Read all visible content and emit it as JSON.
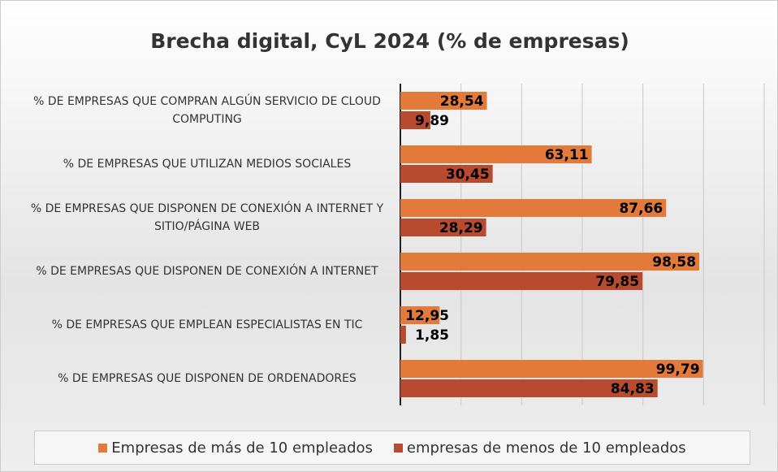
{
  "chart_data": {
    "type": "hbar",
    "title": "Brecha digital, CyL 2024 (% de empresas)",
    "categories": [
      "% DE EMPRESAS QUE COMPRAN ALGÚN SERVICIO DE CLOUD COMPUTING",
      "% DE EMPRESAS QUE UTILIZAN MEDIOS SOCIALES",
      "% DE EMPRESAS QUE DISPONEN DE CONEXIÓN A INTERNET Y SITIO/PÁGINA WEB",
      "% DE EMPRESAS QUE DISPONEN DE CONEXIÓN A INTERNET",
      "% DE EMPRESAS QUE EMPLEAN ESPECIALISTAS EN TIC",
      "% DE EMPRESAS QUE DISPONEN DE ORDENADORES"
    ],
    "series": [
      {
        "name": "Empresas de más de 10 empleados",
        "color": "#e37a3a",
        "values": [
          28.54,
          63.11,
          87.66,
          98.58,
          12.95,
          99.79
        ],
        "value_labels": [
          "28,54",
          "63,11",
          "87,66",
          "98,58",
          "12,95",
          "99,79"
        ]
      },
      {
        "name": "empresas de menos de 10 empleados",
        "color": "#b84b2f",
        "values": [
          9.89,
          30.45,
          28.29,
          79.85,
          1.85,
          84.83
        ],
        "value_labels": [
          "9,89",
          "30,45",
          "28,29",
          "79,85",
          "1,85",
          "84,83"
        ]
      }
    ],
    "xlim": [
      0,
      120
    ],
    "xticks": [
      0,
      20,
      40,
      60,
      80,
      100,
      120
    ],
    "grid": true
  }
}
